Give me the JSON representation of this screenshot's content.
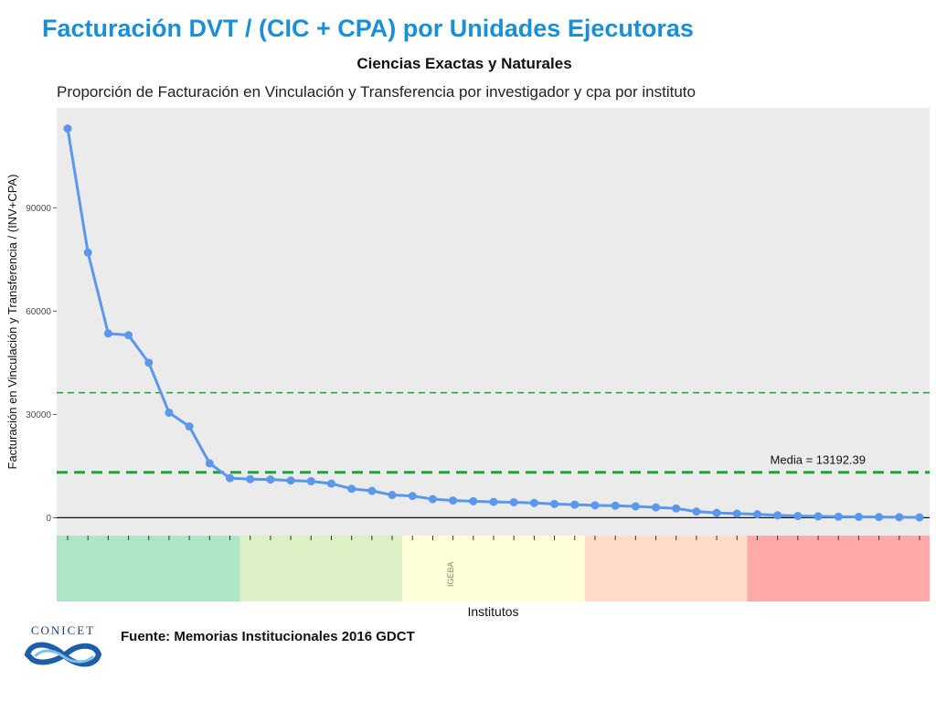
{
  "slide": {
    "title": "Facturación DVT / (CIC + CPA) por Unidades Ejecutoras",
    "subtitle": "Ciencias Exactas y Naturales",
    "source": "Fuente: Memorias Institucionales 2016 GDCT",
    "logo_text": "CONICET"
  },
  "colors": {
    "title": "#1a8fd6",
    "line": "#5b97ea",
    "mean_line": "#1aa637",
    "panel": "#ebebeb",
    "bands": [
      "#ade6c4",
      "#dbf0c5",
      "#feffd9",
      "#ffdcc9",
      "#ffaaaa"
    ]
  },
  "chart_data": {
    "type": "line",
    "title": "Proporción de Facturación en Vinculación y Transferencia por investigador y cpa por instituto",
    "xlabel": "Institutos",
    "ylabel": "Facturación en Vinculación y Transferencia / (INV+CPA)",
    "ylim": [
      -5200,
      119000
    ],
    "yticks": [
      0,
      30000,
      60000,
      90000
    ],
    "ytick_labels": [
      "0",
      "30000",
      "60000",
      "90000"
    ],
    "grid": false,
    "x_count": 43,
    "series": [
      {
        "values": [
          113000,
          77000,
          53500,
          53000,
          45000,
          30500,
          26500,
          15800,
          11500,
          11200,
          11100,
          10800,
          10600,
          9900,
          8400,
          7800,
          6600,
          6300,
          5400,
          5000,
          4800,
          4600,
          4500,
          4300,
          4000,
          3800,
          3600,
          3500,
          3300,
          3000,
          2700,
          1800,
          1400,
          1200,
          1000,
          700,
          500,
          400,
          300,
          250,
          200,
          150,
          100
        ]
      }
    ],
    "reference_lines": [
      {
        "value": 13192.39,
        "label": "Media = 13192.39",
        "style": "dashed-thick"
      },
      {
        "value": 36300,
        "label": "",
        "style": "dashed-thin"
      }
    ],
    "category_bands": [
      {
        "from": 1,
        "to": 9,
        "label": ""
      },
      {
        "from": 10,
        "to": 17,
        "label": ""
      },
      {
        "from": 18,
        "to": 26,
        "label": "IGEBA"
      },
      {
        "from": 27,
        "to": 34,
        "label": ""
      },
      {
        "from": 35,
        "to": 43,
        "label": ""
      }
    ]
  }
}
